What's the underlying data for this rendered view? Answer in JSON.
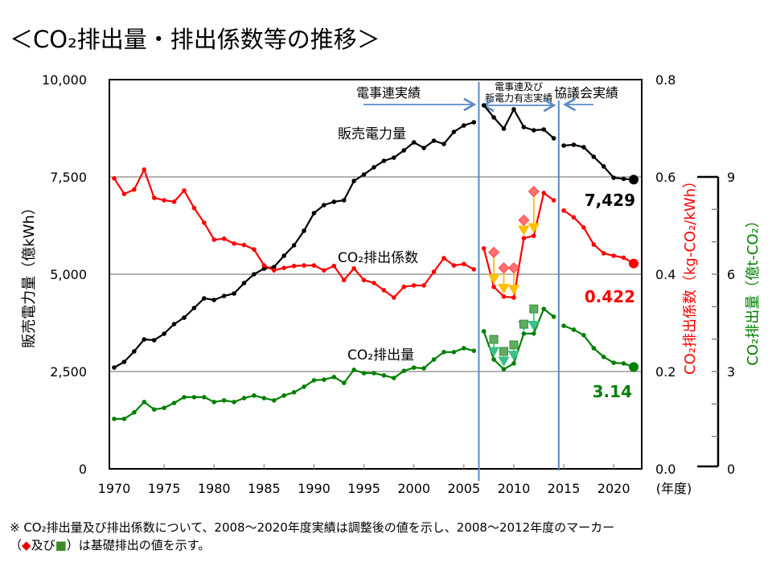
{
  "title": "＜CO₂排出量・排出係数等の推移＞",
  "footnote": {
    "line1": "※ CO₂排出量及び排出係数について、2008～2020年度実績は調整後の値を示し、2008～2012年度のマーカー",
    "line2_pre": "（",
    "diamond": "◆",
    "and": "及び",
    "square": "■",
    "line2_post": "）は基礎排出の値を示す。"
  },
  "chart_data": {
    "type": "line",
    "xlabel": "(年度)",
    "x_ticks": [
      1970,
      1975,
      1980,
      1985,
      1990,
      1995,
      2000,
      2005,
      2010,
      2015,
      2020
    ],
    "xlim": [
      1970,
      2022
    ],
    "axes": {
      "left": {
        "label": "販売電力量（億kWh）",
        "ylim": [
          0,
          10000
        ],
        "ticks": [
          "0",
          "2,500",
          "5,000",
          "7,500",
          "10,000"
        ],
        "tick_values": [
          0,
          2500,
          5000,
          7500,
          10000
        ]
      },
      "right1": {
        "label": "CO₂排出係数（kg-CO₂/kWh）",
        "ylim": [
          0,
          0.8
        ],
        "ticks": [
          "0.0",
          "0.2",
          "0.4",
          "0.6",
          "0.8"
        ],
        "tick_values": [
          0,
          0.2,
          0.4,
          0.6,
          0.8
        ],
        "color": "#ff0000"
      },
      "right2": {
        "label": "CO₂排出量（億t-CO₂）",
        "ylim": [
          0,
          12
        ],
        "ticks": [
          "0",
          "3",
          "6",
          "9"
        ],
        "tick_values": [
          0,
          3,
          6,
          9
        ],
        "color": "#008000"
      }
    },
    "grid": true,
    "periods": [
      {
        "label": "電事連実績",
        "from": 1970,
        "to": 2006
      },
      {
        "label1": "電事連及び",
        "label2": "新電力有志実績",
        "from": 2007,
        "to": 2014
      },
      {
        "label": "協議会実績",
        "from": 2015,
        "to": 2022
      }
    ],
    "series": [
      {
        "name": "販売電力量",
        "axis": "left",
        "color": "#000000",
        "end_label": "7,429",
        "segments": [
          {
            "x_start": 1970,
            "values": [
              2603,
              2748,
              3017,
              3326,
              3306,
              3471,
              3719,
              3884,
              4132,
              4380,
              4339,
              4442,
              4504,
              4773,
              5000,
              5145,
              5186,
              5475,
              5744,
              6116,
              6570,
              6777,
              6860,
              6901,
              7397,
              7562,
              7748,
              7913,
              7996,
              8182,
              8388,
              8244,
              8430,
              8347,
              8657,
              8822,
              8905
            ]
          },
          {
            "x_start": 2007,
            "values": [
              9339,
              9029,
              8740,
              9236,
              8781,
              8698,
              8719,
              8492
            ]
          },
          {
            "x_start": 2015,
            "values": [
              8306,
              8326,
              8264,
              8017,
              7769,
              7479,
              7450,
              7429
            ]
          }
        ]
      },
      {
        "name": "CO₂排出係数",
        "axis": "right1",
        "color": "#ff0000",
        "end_label": "0.422",
        "segments": [
          {
            "x_start": 1970,
            "values": [
              0.597,
              0.565,
              0.574,
              0.615,
              0.557,
              0.552,
              0.549,
              0.572,
              0.536,
              0.506,
              0.471,
              0.473,
              0.463,
              0.46,
              0.451,
              0.418,
              0.408,
              0.413,
              0.417,
              0.418,
              0.418,
              0.408,
              0.417,
              0.388,
              0.412,
              0.388,
              0.382,
              0.367,
              0.352,
              0.374,
              0.377,
              0.377,
              0.405,
              0.433,
              0.418,
              0.421,
              0.41
            ]
          },
          {
            "x_start": 2007,
            "values": [
              0.453,
              0.374,
              0.354,
              0.352,
              0.474,
              0.479,
              0.567,
              0.552
            ]
          },
          {
            "x_start": 2015,
            "values": [
              0.531,
              0.517,
              0.496,
              0.461,
              0.443,
              0.438,
              0.434,
              0.422
            ]
          }
        ],
        "base_markers": {
          "name": "基礎排出係数",
          "marker": "diamond",
          "color": "#ff7070",
          "x": [
            2008,
            2009,
            2010,
            2011,
            2012
          ],
          "values": [
            0.445,
            0.413,
            0.413,
            0.511,
            0.57
          ],
          "arrow_color": "#ffc000"
        }
      },
      {
        "name": "CO₂排出量",
        "axis": "right2",
        "color": "#008000",
        "end_label": "3.14",
        "segments": [
          {
            "x_start": 1970,
            "values": [
              1.54,
              1.54,
              1.74,
              2.06,
              1.83,
              1.88,
              2.03,
              2.21,
              2.21,
              2.21,
              2.06,
              2.11,
              2.06,
              2.18,
              2.26,
              2.18,
              2.11,
              2.26,
              2.36,
              2.53,
              2.73,
              2.75,
              2.83,
              2.65,
              3.05,
              2.95,
              2.95,
              2.88,
              2.8,
              3.02,
              3.12,
              3.1,
              3.37,
              3.6,
              3.6,
              3.72,
              3.64
            ]
          },
          {
            "x_start": 2007,
            "values": [
              4.24,
              3.37,
              3.07,
              3.25,
              4.17,
              4.17,
              4.93,
              4.69
            ]
          },
          {
            "x_start": 2015,
            "values": [
              4.41,
              4.29,
              4.12,
              3.72,
              3.45,
              3.27,
              3.25,
              3.14
            ]
          }
        ],
        "base_markers": {
          "name": "基礎排出量",
          "marker": "square",
          "color": "#5fae5f",
          "x": [
            2008,
            2009,
            2010,
            2011,
            2012
          ],
          "values": [
            3.99,
            3.62,
            3.82,
            4.46,
            4.93
          ],
          "arrow_color": "#3cc08a"
        }
      }
    ]
  }
}
